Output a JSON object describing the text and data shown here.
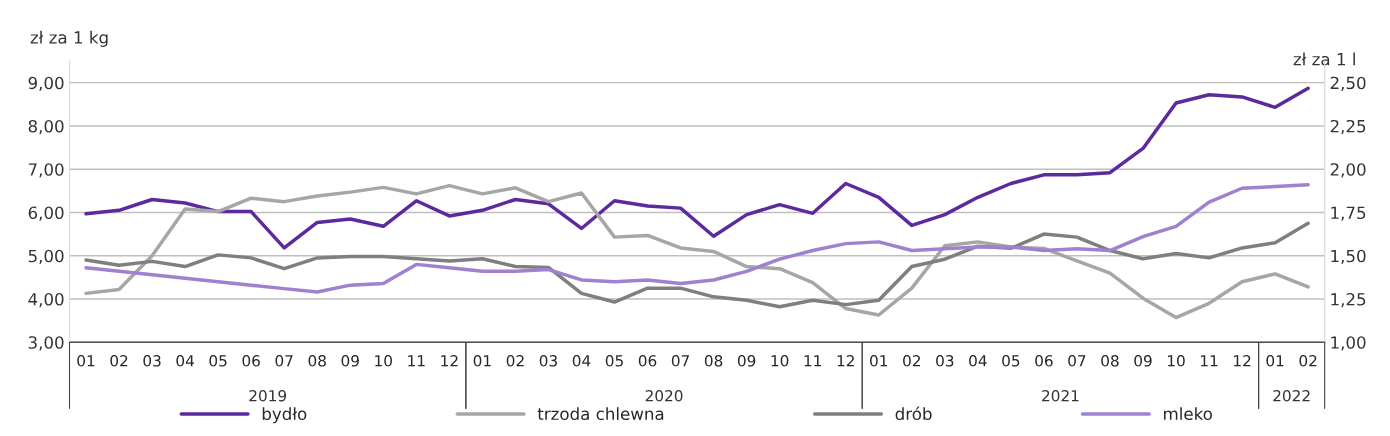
{
  "chart_data": {
    "type": "line",
    "ylabel": "zł za 1 kg",
    "y2label": "zł za 1 l",
    "categories": [
      "01",
      "02",
      "03",
      "04",
      "05",
      "06",
      "07",
      "08",
      "09",
      "10",
      "11",
      "12",
      "01",
      "02",
      "03",
      "04",
      "05",
      "06",
      "07",
      "08",
      "09",
      "10",
      "11",
      "12",
      "01",
      "02",
      "03",
      "04",
      "05",
      "06",
      "07",
      "08",
      "09",
      "10",
      "11",
      "12",
      "01",
      "02"
    ],
    "annotations": [
      "2019",
      "2020",
      "2021",
      "2022"
    ],
    "series": [
      {
        "name": "bydło",
        "color": "#5b2a9e",
        "values": [
          5.97,
          6.05,
          6.3,
          6.22,
          6.02,
          6.02,
          5.18,
          5.77,
          5.85,
          5.68,
          6.27,
          5.92,
          6.05,
          6.3,
          6.2,
          5.63,
          6.27,
          6.15,
          6.1,
          5.45,
          5.95,
          6.18,
          5.98,
          6.67,
          6.35,
          5.7,
          5.95,
          6.35,
          6.67,
          6.87,
          6.87,
          6.92,
          7.48,
          8.53,
          8.72,
          8.67,
          8.43,
          8.87
        ]
      },
      {
        "name": "trzoda chlewna",
        "color": "#a6a6a6",
        "values": [
          4.13,
          4.22,
          5.0,
          6.08,
          6.02,
          6.33,
          6.25,
          6.38,
          6.47,
          6.58,
          6.43,
          6.62,
          6.43,
          6.57,
          6.25,
          6.45,
          5.43,
          5.47,
          5.18,
          5.1,
          4.75,
          4.7,
          4.38,
          3.78,
          3.63,
          4.25,
          5.23,
          5.32,
          5.2,
          5.17,
          4.88,
          4.6,
          4.02,
          3.57,
          3.9,
          4.4,
          4.58,
          4.28
        ]
      },
      {
        "name": "drób",
        "color": "#7f7f7f",
        "values": [
          4.9,
          4.78,
          4.87,
          4.75,
          5.02,
          4.95,
          4.7,
          4.95,
          4.98,
          4.98,
          4.93,
          4.88,
          4.93,
          4.75,
          4.73,
          4.13,
          3.93,
          4.25,
          4.25,
          4.05,
          3.97,
          3.82,
          3.97,
          3.87,
          3.97,
          4.75,
          4.92,
          5.22,
          5.17,
          5.5,
          5.43,
          5.12,
          4.93,
          5.05,
          4.95,
          5.18,
          5.3,
          5.75
        ]
      },
      {
        "name": "mleko",
        "color": "#a081d0",
        "axis": "y2",
        "values": [
          1.43,
          1.41,
          1.39,
          1.37,
          1.35,
          1.33,
          1.31,
          1.29,
          1.33,
          1.34,
          1.45,
          1.43,
          1.41,
          1.41,
          1.42,
          1.36,
          1.35,
          1.36,
          1.34,
          1.36,
          1.41,
          1.48,
          1.53,
          1.57,
          1.58,
          1.53,
          1.54,
          1.55,
          1.55,
          1.53,
          1.54,
          1.53,
          1.61,
          1.67,
          1.81,
          1.89,
          1.9,
          1.91
        ]
      }
    ],
    "ylim": [
      3,
      9.5
    ],
    "yticks": [
      {
        "value": 3,
        "label": "3,00"
      },
      {
        "value": 4,
        "label": "4,00"
      },
      {
        "value": 5,
        "label": "5,00"
      },
      {
        "value": 6,
        "label": "6,00"
      },
      {
        "value": 7,
        "label": "7,00"
      },
      {
        "value": 8,
        "label": "8,00"
      },
      {
        "value": 9,
        "label": "9,00"
      }
    ],
    "y2lim": [
      1.0,
      2.625
    ],
    "y2ticks": [
      {
        "value": 1.0,
        "label": "1,00"
      },
      {
        "value": 1.25,
        "label": "1,25"
      },
      {
        "value": 1.5,
        "label": "1,50"
      },
      {
        "value": 1.75,
        "label": "1,75"
      },
      {
        "value": 2.0,
        "label": "2,00"
      },
      {
        "value": 2.25,
        "label": "2,25"
      },
      {
        "value": 2.5,
        "label": "2,50"
      }
    ],
    "grid": "y",
    "legend": "bottom",
    "marker": "none",
    "line_style": "solid"
  }
}
